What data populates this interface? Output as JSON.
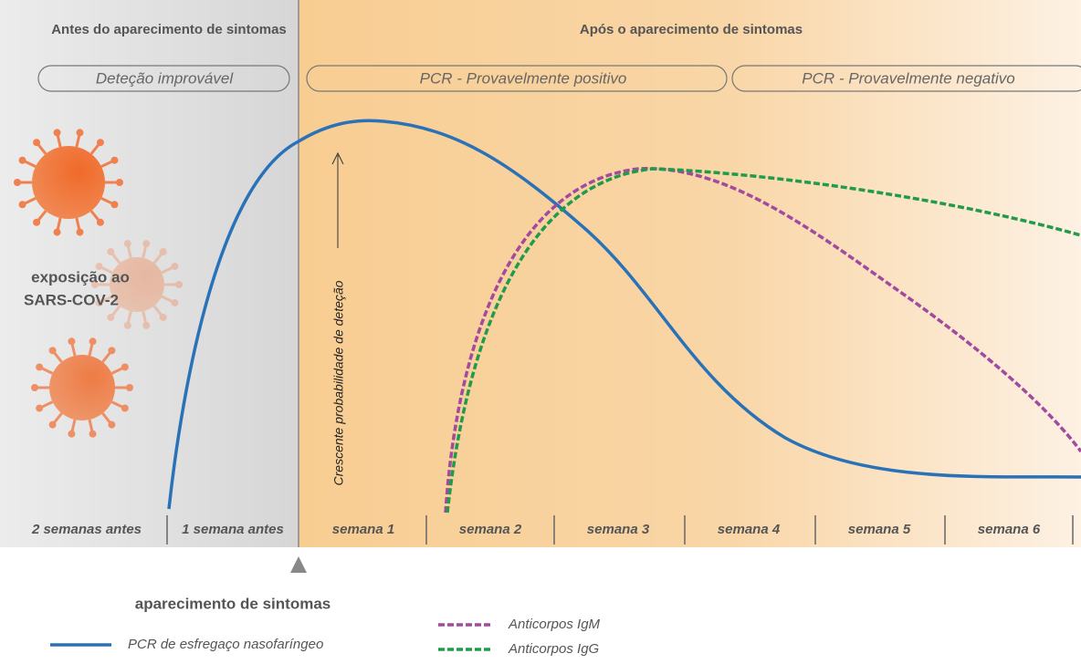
{
  "header": {
    "before": "Antes do aparecimento de sintomas",
    "after": "Após o aparecimento de sintomas"
  },
  "phases": [
    "Deteção improvável",
    "PCR - Provavelmente positivo",
    "PCR - Provavelmente negativo"
  ],
  "exposure": [
    "exposição ao",
    "SARS-COV-2"
  ],
  "axis_label": "Crescente probabilidade de deteção",
  "weeks": [
    "2 semanas antes",
    "1 semana antes",
    "semana 1",
    "semana 2",
    "semana 3",
    "semana 4",
    "semana 5",
    "semana 6"
  ],
  "onset": "aparecimento de sintomas",
  "legend": [
    "PCR de esfregaço nasofaríngeo",
    "Anticorpos IgM",
    "Anticorpos IgG"
  ]
}
